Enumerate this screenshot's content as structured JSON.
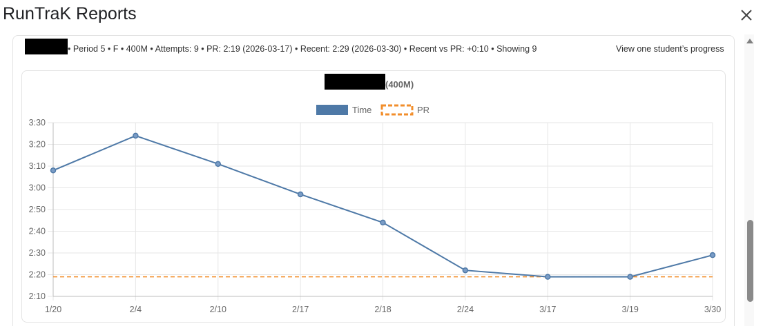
{
  "dialog": {
    "title": "RunTraK Reports",
    "close_label": "×"
  },
  "summary": {
    "text": "• Period 5 • F • 400M • Attempts: 9 • PR: 2:19 (2026-03-17) • Recent: 2:29 (2026-03-30) • Recent vs PR: +0:10 • Showing 9",
    "link_label": "View one student’s progress"
  },
  "chart_data": {
    "type": "line",
    "title": "(400M)",
    "categories": [
      "1/20",
      "2/4",
      "2/10",
      "2/17",
      "2/18",
      "2/24",
      "3/17",
      "3/19",
      "3/30"
    ],
    "series": [
      {
        "name": "Time",
        "color": "#4e79a7",
        "values": [
          "3:08",
          "3:24",
          "3:11",
          "2:57",
          "2:44",
          "2:22",
          "2:19",
          "2:19",
          "2:29"
        ]
      },
      {
        "name": "PR",
        "color": "#f28e2b",
        "style": "dashed",
        "values": [
          "2:19",
          "2:19",
          "2:19",
          "2:19",
          "2:19",
          "2:19",
          "2:19",
          "2:19",
          "2:19"
        ]
      }
    ],
    "yticks": [
      "2:10",
      "2:20",
      "2:30",
      "2:40",
      "2:50",
      "3:00",
      "3:10",
      "3:20",
      "3:30"
    ],
    "ylim": [
      "2:10",
      "3:30"
    ],
    "legend_position": "top-center",
    "grid": true
  }
}
